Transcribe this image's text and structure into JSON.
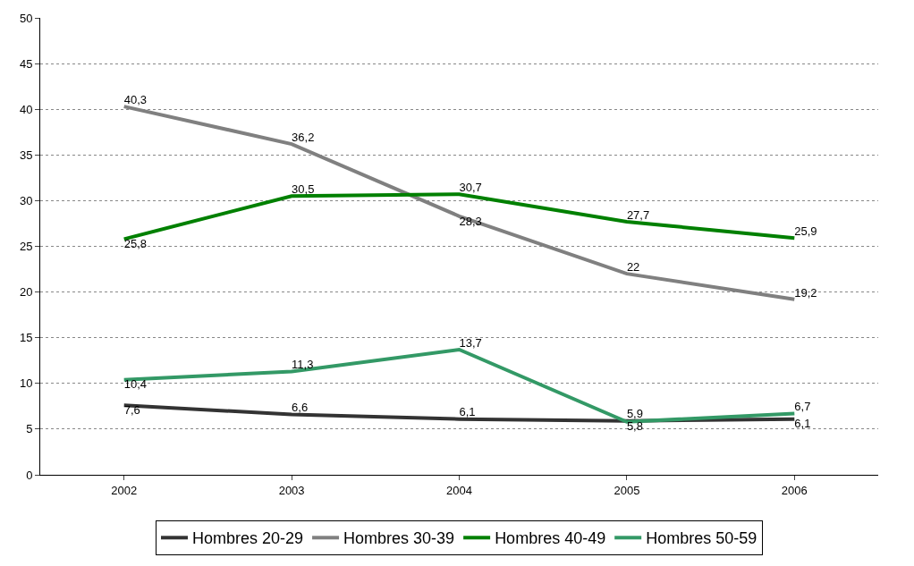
{
  "chart_data": {
    "type": "line",
    "categories": [
      "2002",
      "2003",
      "2004",
      "2005",
      "2006"
    ],
    "series": [
      {
        "name": "Hombres 20-29",
        "color": "#333333",
        "values": [
          7.6,
          6.6,
          6.1,
          5.9,
          6.1
        ],
        "value_labels": [
          "7,6",
          "6,6",
          "6,1",
          "5,9",
          "6,1"
        ]
      },
      {
        "name": "Hombres 30-39",
        "color": "#808080",
        "values": [
          40.3,
          36.2,
          28.3,
          22,
          19.2
        ],
        "value_labels": [
          "40,3",
          "36,2",
          "28,3",
          "22",
          "19,2"
        ]
      },
      {
        "name": "Hombres 40-49",
        "color": "#008000",
        "values": [
          25.8,
          30.5,
          30.7,
          27.7,
          25.9
        ],
        "value_labels": [
          "25,8",
          "30,5",
          "30,7",
          "27,7",
          "25,9"
        ]
      },
      {
        "name": "Hombres 50-59",
        "color": "#339966",
        "values": [
          10.4,
          11.3,
          13.7,
          5.8,
          6.7
        ],
        "value_labels": [
          "10,4",
          "11,3",
          "13,7",
          "5,8",
          "6,7"
        ]
      }
    ],
    "ylim": [
      0,
      50
    ],
    "yticks": [
      0,
      5,
      10,
      15,
      20,
      25,
      30,
      35,
      40,
      45,
      50
    ],
    "grid": "y",
    "legend": "bottom",
    "marker": "none",
    "line_style": "solid"
  }
}
